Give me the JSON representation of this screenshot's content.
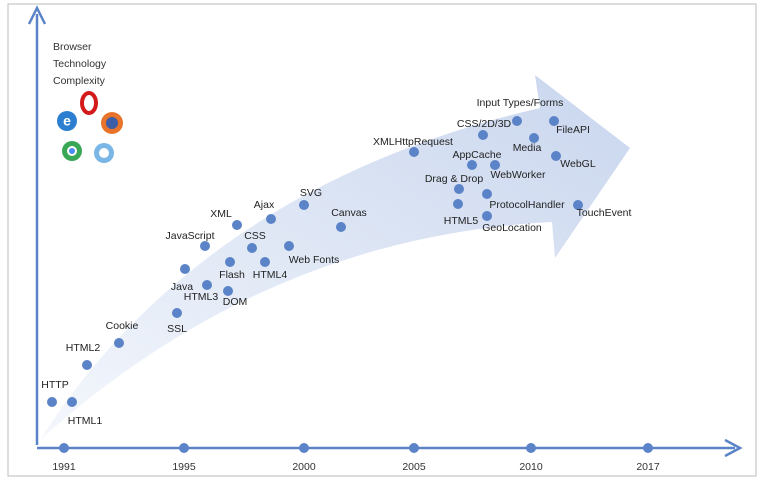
{
  "axis_label": [
    "Browser",
    "Technology",
    "Complexity"
  ],
  "years": [
    "1991",
    "1995",
    "2000",
    "2005",
    "2010",
    "2017"
  ],
  "nodes": [
    "HTTP",
    "HTML1",
    "HTML2",
    "Cookie",
    "SSL",
    "Java",
    "JavaScript",
    "HTML3",
    "XML",
    "Flash",
    "DOM",
    "CSS",
    "Ajax",
    "HTML4",
    "SVG",
    "Web Fonts",
    "Canvas",
    "XMLHttpRequest",
    "Input Types/Forms",
    "CSS/2D/3D",
    "FileAPI",
    "Media",
    "AppCache",
    "WebWorker",
    "WebGL",
    "Drag & Drop",
    "ProtocolHandler",
    "HTML5",
    "GeoLocation",
    "TouchEvent"
  ]
}
